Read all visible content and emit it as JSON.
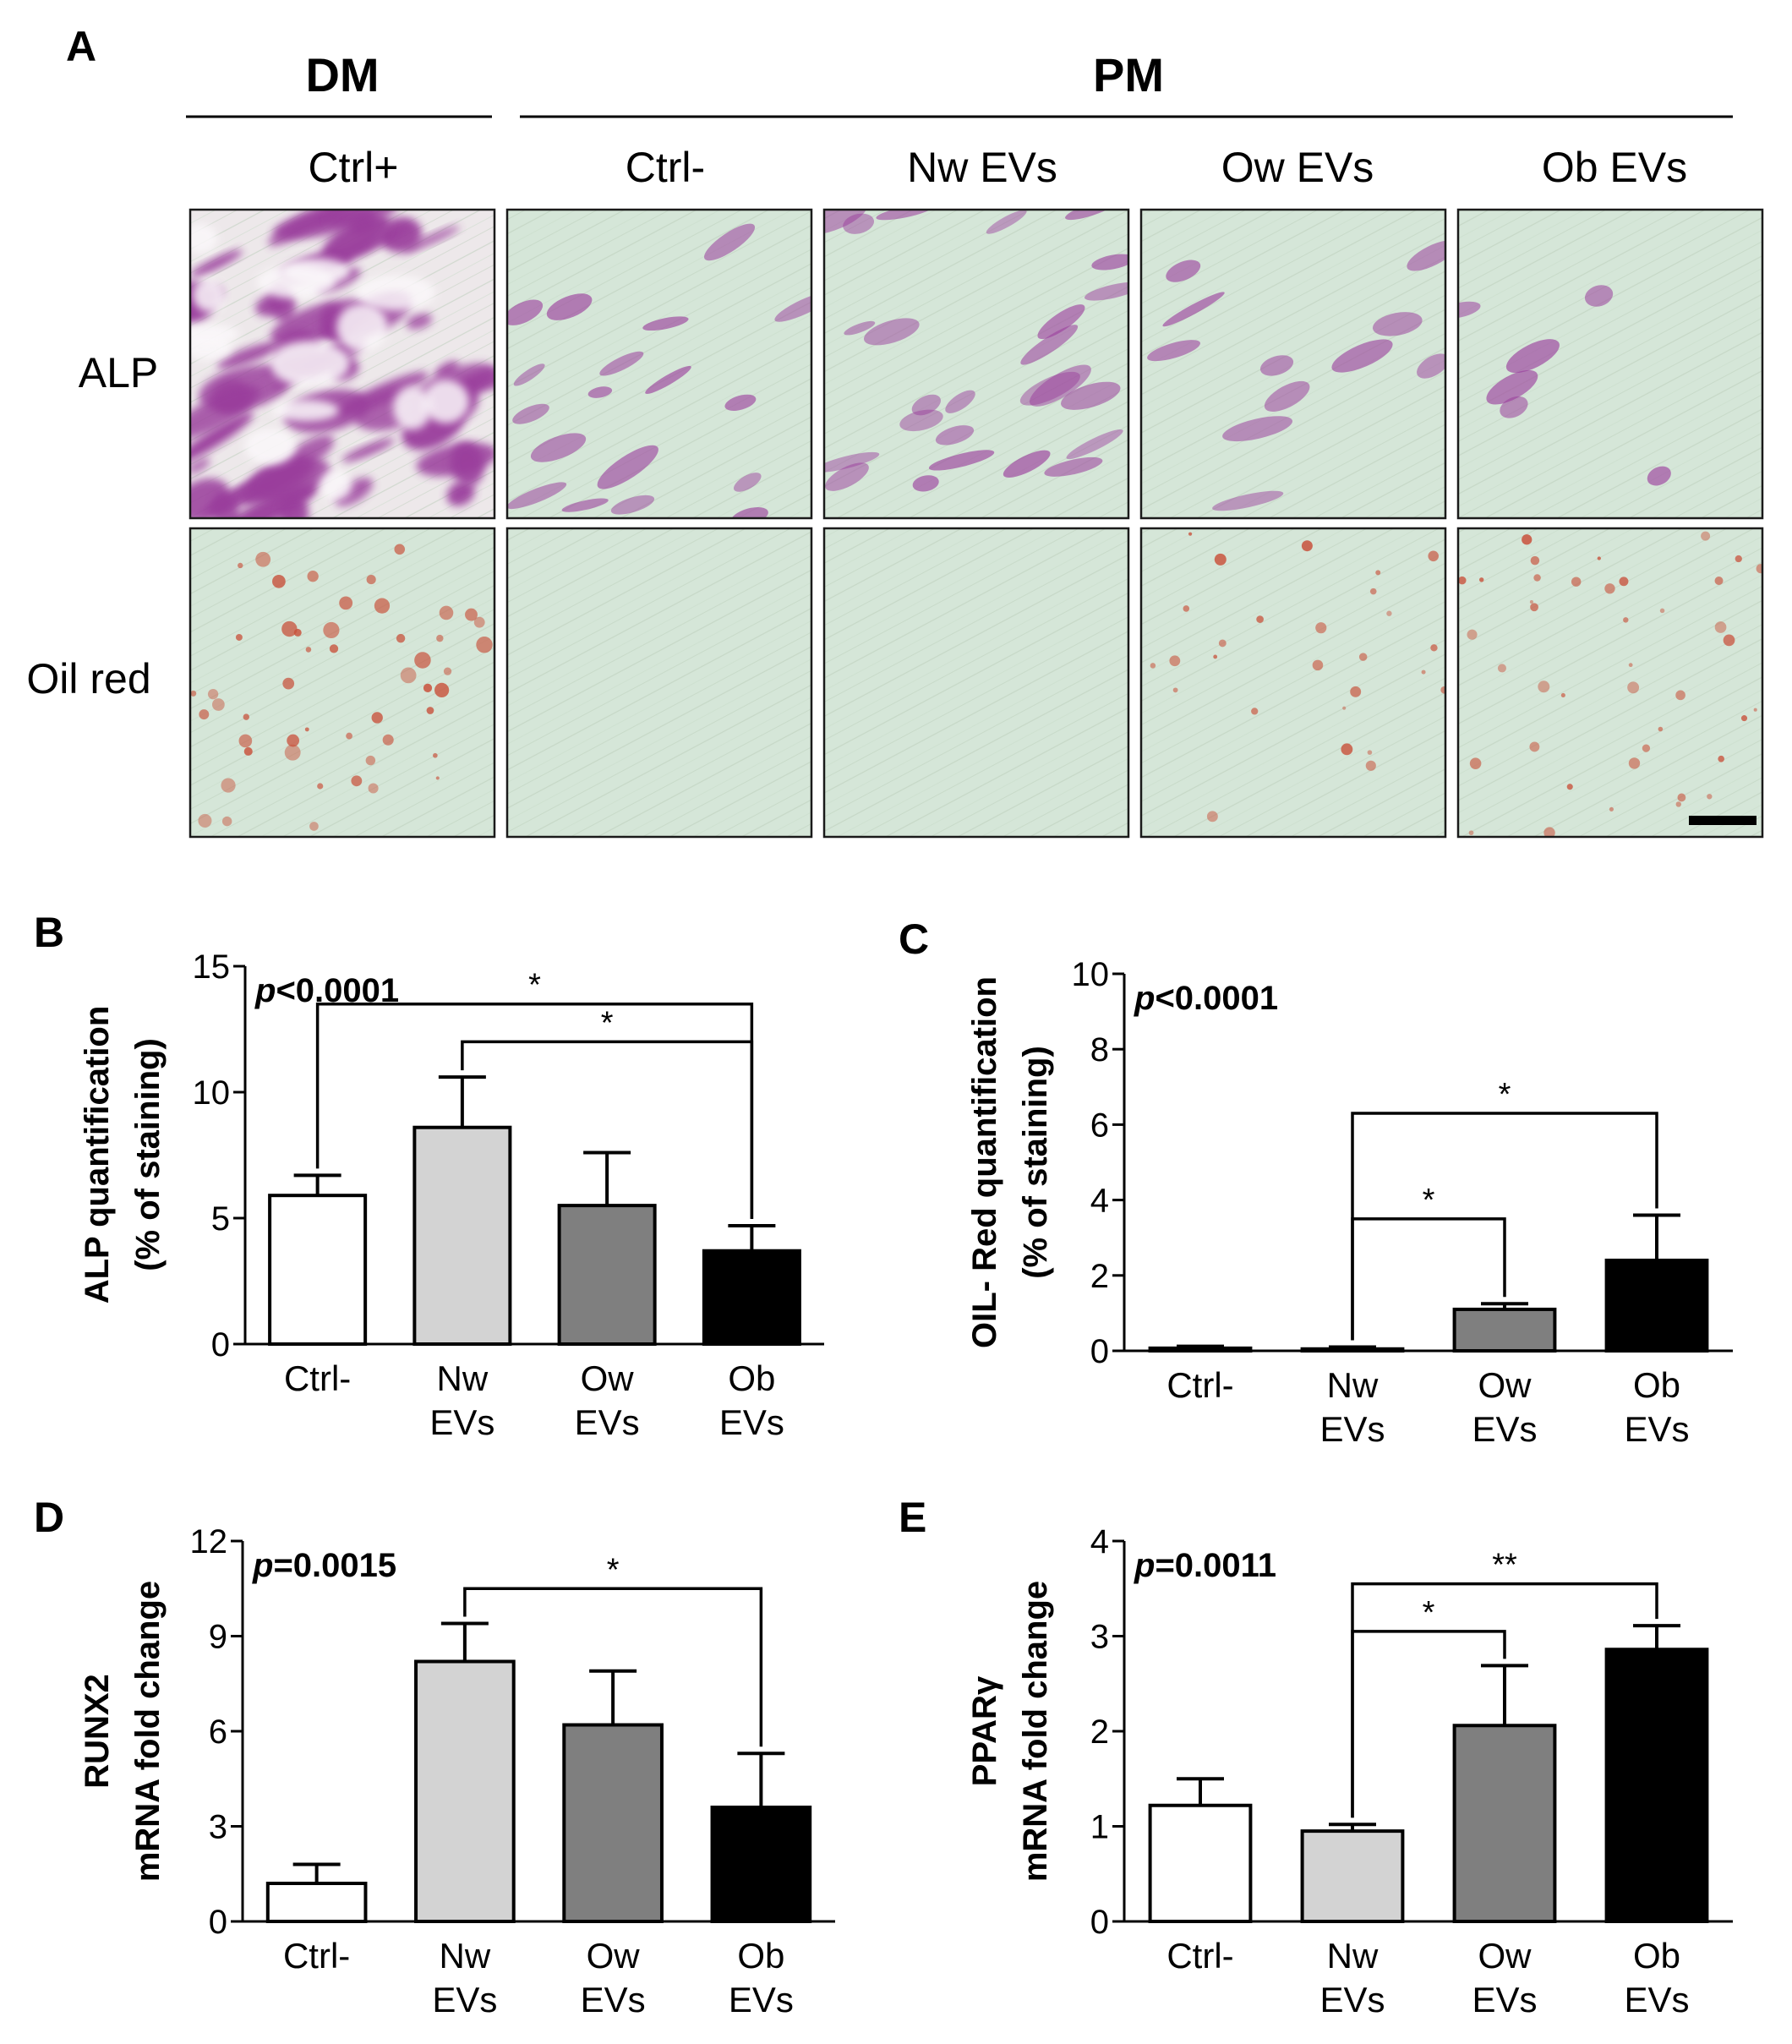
{
  "panel_a": {
    "label": "A",
    "group_dm": "DM",
    "group_pm": "PM",
    "columns": [
      "Ctrl+",
      "Ctrl-",
      "Nw EVs",
      "Ow EVs",
      "Ob EVs"
    ],
    "rows": [
      "ALP",
      "Oil red"
    ],
    "colors": {
      "image_bg": "#d5e6d8",
      "alp_stain": "#9a3d9c",
      "oil_stain": "#c8503a"
    },
    "stain_intensity": {
      "ALP": [
        0.95,
        0.3,
        0.42,
        0.18,
        0.1
      ],
      "Oil red": [
        0.55,
        0.0,
        0.0,
        0.3,
        0.45
      ]
    }
  },
  "chart_data": [
    {
      "panel": "B",
      "type": "bar",
      "categories": [
        [
          "Ctrl-"
        ],
        [
          "Nw",
          "EVs"
        ],
        [
          "Ow",
          "EVs"
        ],
        [
          "Ob",
          "EVs"
        ]
      ],
      "values": [
        5.9,
        8.6,
        5.5,
        3.7
      ],
      "errors": [
        0.8,
        2.0,
        2.1,
        1.0
      ],
      "bar_colors": [
        "#ffffff",
        "#d3d3d3",
        "#7f7f7f",
        "#000000"
      ],
      "ylabel": [
        "ALP quantification",
        "(% of staining)"
      ],
      "ylim": [
        0,
        15
      ],
      "yticks": [
        0,
        5,
        10,
        15
      ],
      "annotation": "p<0.0001",
      "significance": [
        {
          "from": 0,
          "to": 3,
          "y": 13.5,
          "label": "*"
        },
        {
          "from": 1,
          "to": 3,
          "y": 12.0,
          "label": "*"
        }
      ]
    },
    {
      "panel": "C",
      "type": "bar",
      "categories": [
        [
          "Ctrl-"
        ],
        [
          "Nw",
          "EVs"
        ],
        [
          "Ow",
          "EVs"
        ],
        [
          "Ob",
          "EVs"
        ]
      ],
      "values": [
        0.07,
        0.05,
        1.1,
        2.4
      ],
      "errors": [
        0.05,
        0.05,
        0.15,
        1.2
      ],
      "bar_colors": [
        "#ffffff",
        "#d3d3d3",
        "#7f7f7f",
        "#000000"
      ],
      "ylabel": [
        "OIL- Red quantification",
        "(% of staining)"
      ],
      "ylim": [
        0,
        10
      ],
      "yticks": [
        0,
        2,
        4,
        6,
        8,
        10
      ],
      "annotation": "p<0.0001",
      "significance": [
        {
          "from": 1,
          "to": 3,
          "y": 6.3,
          "label": "*"
        },
        {
          "from": 1,
          "to": 2,
          "y": 3.5,
          "label": "*"
        }
      ]
    },
    {
      "panel": "D",
      "type": "bar",
      "categories": [
        [
          "Ctrl-"
        ],
        [
          "Nw",
          "EVs"
        ],
        [
          "Ow",
          "EVs"
        ],
        [
          "Ob",
          "EVs"
        ]
      ],
      "values": [
        1.2,
        8.2,
        6.2,
        3.6
      ],
      "errors": [
        0.6,
        1.2,
        1.7,
        1.7
      ],
      "bar_colors": [
        "#ffffff",
        "#d3d3d3",
        "#7f7f7f",
        "#000000"
      ],
      "ylabel": [
        "RUNX2",
        "mRNA fold change"
      ],
      "ylim": [
        0,
        12
      ],
      "yticks": [
        0,
        3,
        6,
        9,
        12
      ],
      "annotation": "p=0.0015",
      "significance": [
        {
          "from": 1,
          "to": 3,
          "y": 10.5,
          "label": "*"
        }
      ]
    },
    {
      "panel": "E",
      "type": "bar",
      "categories": [
        [
          "Ctrl-"
        ],
        [
          "Nw",
          "EVs"
        ],
        [
          "Ow",
          "EVs"
        ],
        [
          "Ob",
          "EVs"
        ]
      ],
      "values": [
        1.22,
        0.95,
        2.06,
        2.86
      ],
      "errors": [
        0.28,
        0.07,
        0.63,
        0.25
      ],
      "bar_colors": [
        "#ffffff",
        "#d3d3d3",
        "#7f7f7f",
        "#000000"
      ],
      "ylabel": [
        "PPARγ",
        "mRNA fold change"
      ],
      "ylim": [
        0,
        4
      ],
      "yticks": [
        0,
        1,
        2,
        3,
        4
      ],
      "annotation": "p=0.0011",
      "significance": [
        {
          "from": 1,
          "to": 3,
          "y": 3.55,
          "label": "**"
        },
        {
          "from": 1,
          "to": 2,
          "y": 3.05,
          "label": "*"
        }
      ]
    }
  ]
}
